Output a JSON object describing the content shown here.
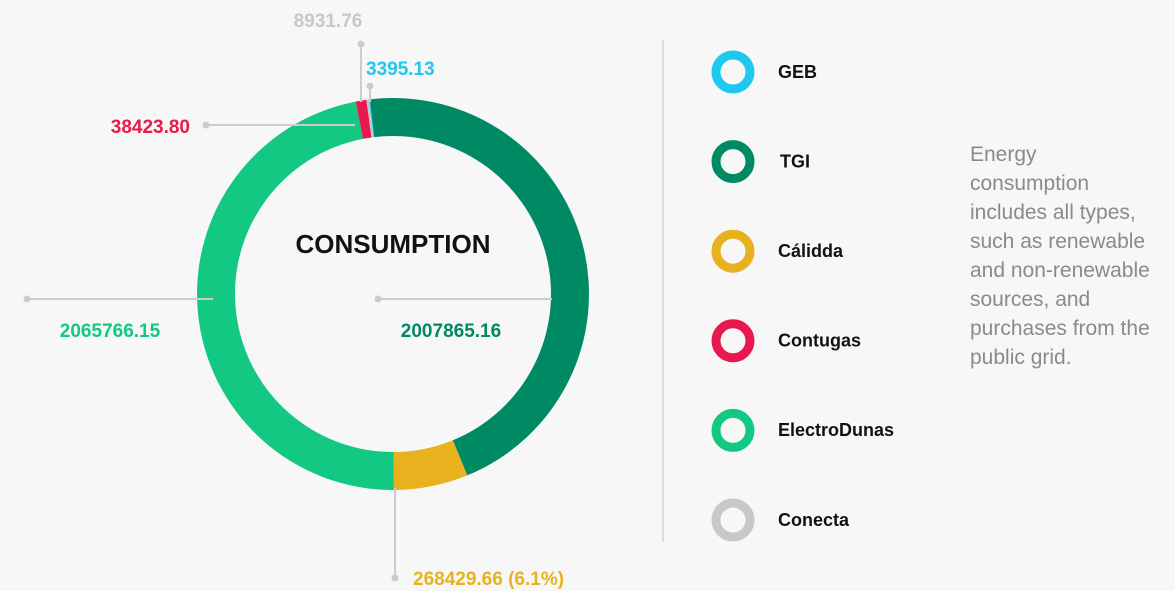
{
  "chart_data": {
    "type": "pie",
    "title": "CONSUMPTION",
    "categories": [
      "GEB",
      "TGI",
      "Cálidda",
      "Contugas",
      "ElectroDunas",
      "Conecta"
    ],
    "values": [
      3395.13,
      2007865.16,
      268429.66,
      38423.8,
      2065766.15,
      8931.76
    ],
    "value_labels": [
      "3395.13",
      "2007865.16",
      "268429.66 (6.1%)",
      "38423.80",
      "2065766.15",
      "8931.76"
    ],
    "colors": [
      "#1ec8f0",
      "#008a63",
      "#e8b21e",
      "#e8194e",
      "#12c882",
      "#c8c8c8"
    ],
    "note": "Energy consumption includes all types, such as renewable and non-renewable sources, and purchases from the public grid."
  }
}
